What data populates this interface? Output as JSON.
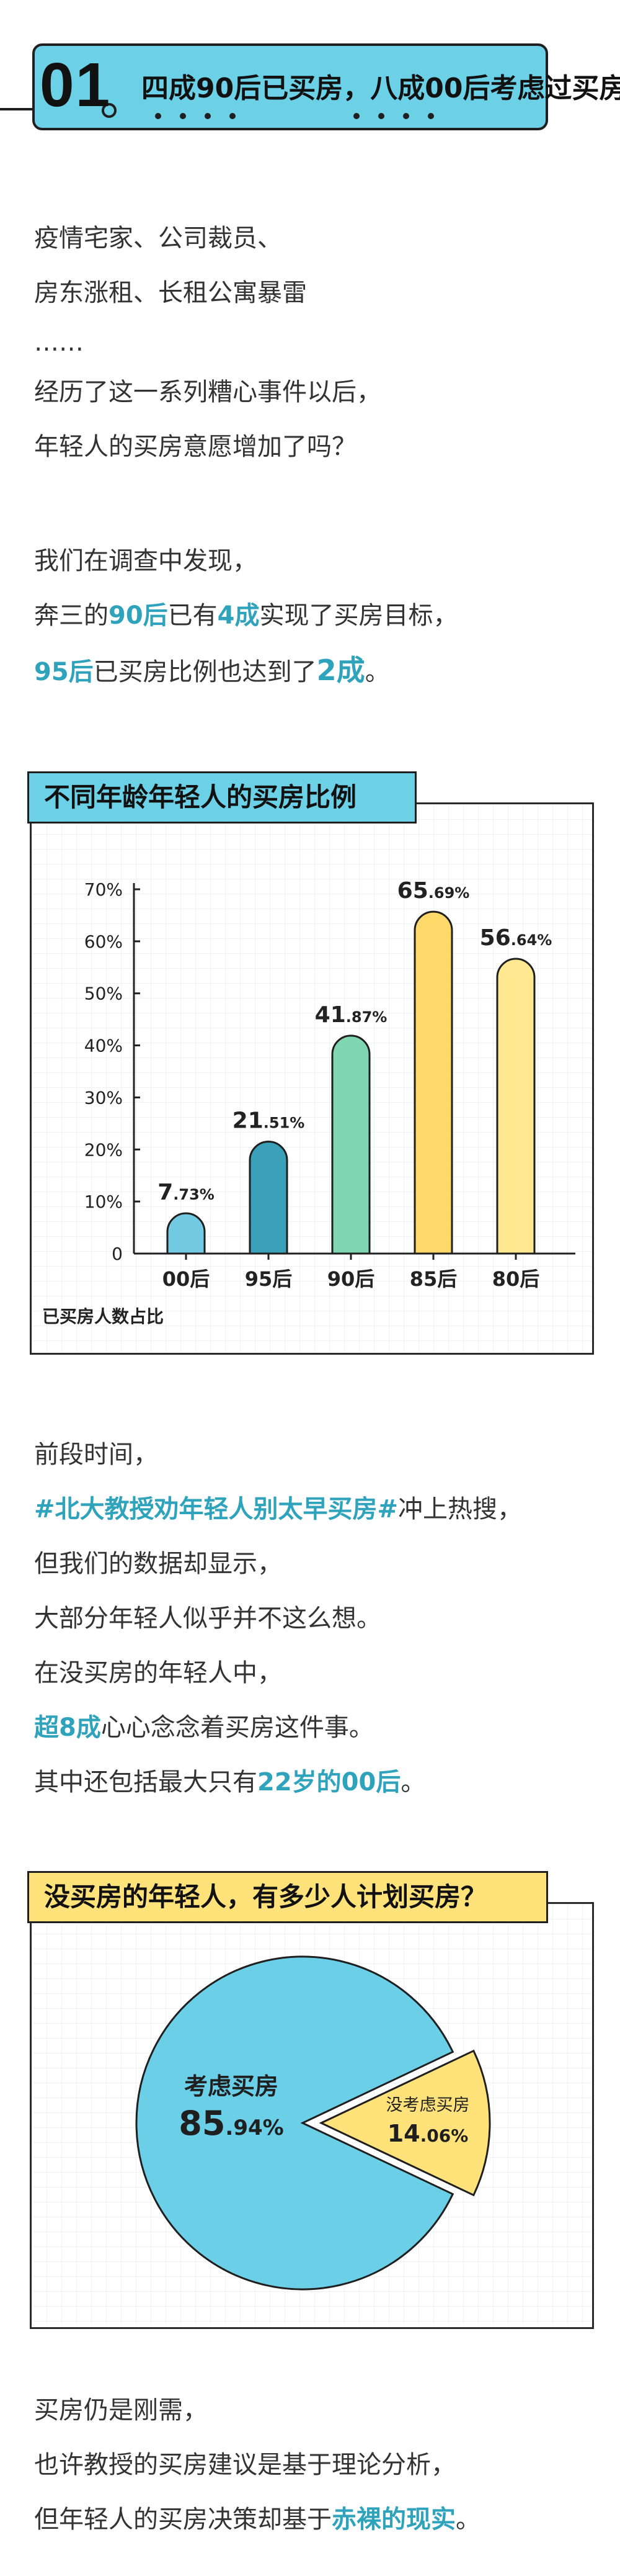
{
  "section": {
    "number": "01",
    "title": "四成90后已买房，八成00后考虑过买房",
    "colors": {
      "accent": "#6cd0e6",
      "border": "#1f1f1f"
    }
  },
  "intro": {
    "line1": "疫情宅家、公司裁员、",
    "line2": "房东涨租、长租公寓暴雷",
    "line3": "……",
    "line4": "经历了这一系列糟心事件以后，",
    "line5": "年轻人的买房意愿增加了吗？"
  },
  "finding": {
    "line1": "我们在调查中发现，",
    "line2_a": "奔三的",
    "line2_b": "90后",
    "line2_c": "已有",
    "line2_d": "4成",
    "line2_e": "实现了买房目标，",
    "line3_a": "95后",
    "line3_b": "已买房比例也达到了",
    "line3_c": "2成",
    "line3_d": "。"
  },
  "chart1": {
    "panel_title": "不同年龄年轻人的买房比例",
    "panel_title_bg": "#6cd0e6",
    "y_axis_label": "已买房人数占比",
    "chart_data": {
      "type": "bar",
      "categories": [
        "00后",
        "95后",
        "90后",
        "85后",
        "80后"
      ],
      "values": [
        7.73,
        21.51,
        41.87,
        65.69,
        56.64
      ],
      "labels_int": [
        "7",
        "21",
        "41",
        "65",
        "56"
      ],
      "labels_dec": [
        ".73%",
        ".51%",
        ".87%",
        ".69%",
        ".64%"
      ],
      "colors": [
        "#72cbe2",
        "#3aa1b8",
        "#80d6b1",
        "#ffd86a",
        "#ffe88f"
      ],
      "ylim": [
        0,
        70
      ],
      "yticks": [
        "0",
        "10%",
        "20%",
        "30%",
        "40%",
        "50%",
        "60%",
        "70%"
      ],
      "grid": true
    }
  },
  "hot": {
    "line1": "前段时间，",
    "line2_a": "#北大教授劝年轻人别太早买房#",
    "line2_b": "冲上热搜，",
    "line3": "但我们的数据却显示，",
    "line4": "大部分年轻人似乎并不这么想。",
    "line5": "在没买房的年轻人中，",
    "line6_a": "超8成",
    "line6_b": "心心念念着买房这件事。",
    "line7_a": "其中还包括最大只有",
    "line7_b": "22岁的00后",
    "line7_c": "。"
  },
  "chart2": {
    "panel_title": "没买房的年轻人，有多少人计划买房？",
    "panel_title_bg": "#ffe27a",
    "chart_data": {
      "type": "pie",
      "slices": [
        {
          "label": "考虑买房",
          "value": 85.94,
          "int": "85",
          "dec": ".94%",
          "color": "#6ccfe8"
        },
        {
          "label": "没考虑买房",
          "value": 14.06,
          "int": "14",
          "dec": ".06%",
          "color": "#ffe27a"
        }
      ]
    }
  },
  "outro": {
    "line1": "买房仍是刚需，",
    "line2": "也许教授的买房建议是基于理论分析，",
    "line3_a": "但年轻人的买房决策却基于",
    "line3_b": "赤裸的现实",
    "line3_c": "。"
  }
}
